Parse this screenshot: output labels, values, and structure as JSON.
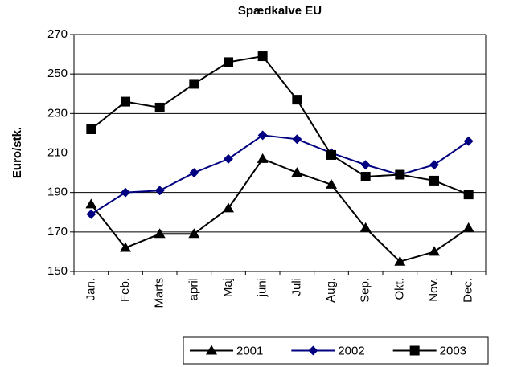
{
  "chart_data": {
    "type": "line",
    "title": "Spædkalve EU",
    "y_label": "Euro/stk.",
    "categories": [
      "Jan.",
      "Feb.",
      "Marts",
      "april",
      "Maj",
      "juni",
      "Juli",
      "Aug.",
      "Sep.",
      "Okt.",
      "Nov.",
      "Dec."
    ],
    "series": [
      {
        "name": "2001",
        "color": "#000000",
        "marker": "triangle",
        "values": [
          184,
          162,
          169,
          169,
          182,
          207,
          200,
          194,
          172,
          155,
          160,
          172
        ]
      },
      {
        "name": "2002",
        "color": "#000080",
        "marker": "diamond",
        "values": [
          179,
          190,
          191,
          200,
          207,
          219,
          217,
          210,
          204,
          199,
          204,
          216
        ]
      },
      {
        "name": "2003",
        "color": "#000000",
        "marker": "square",
        "values": [
          222,
          236,
          233,
          245,
          256,
          259,
          237,
          209,
          198,
          199,
          196,
          189
        ]
      }
    ],
    "ylim": [
      150,
      270
    ],
    "yticks": [
      150,
      170,
      190,
      210,
      230,
      250,
      270
    ],
    "grid": true,
    "legend": "bottom-right"
  }
}
